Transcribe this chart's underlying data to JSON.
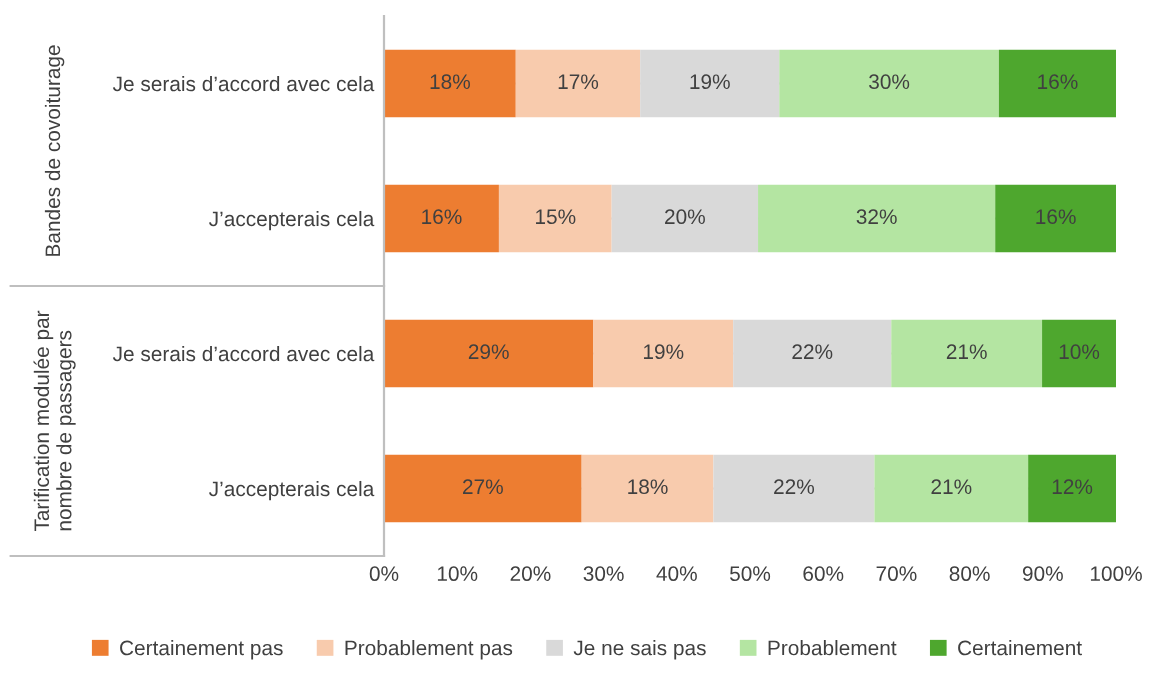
{
  "chart_data": {
    "type": "bar",
    "orientation": "horizontal",
    "stacked": true,
    "categories": [
      "Je serais d’accord avec cela",
      "J’accepterais cela",
      "Je serais d’accord avec cela",
      "J’accepterais cela"
    ],
    "series": [
      {
        "name": "Certainement pas",
        "color": "#ed7d31",
        "values": [
          18,
          15.7,
          28.6,
          27
        ],
        "value_labels": [
          "18%",
          "16%",
          "29%",
          "27%"
        ]
      },
      {
        "name": "Probablement pas",
        "color": "#f8cbad",
        "values": [
          17,
          15.4,
          19.1,
          18
        ],
        "value_labels": [
          "17%",
          "15%",
          "19%",
          "18%"
        ]
      },
      {
        "name": "Je ne sais pas",
        "color": "#d9d9d9",
        "values": [
          19,
          20.0,
          21.6,
          22
        ],
        "value_labels": [
          "19%",
          "20%",
          "22%",
          "22%"
        ]
      },
      {
        "name": "Probablement",
        "color": "#b4e5a2",
        "values": [
          30,
          32.4,
          20.6,
          21
        ],
        "value_labels": [
          "30%",
          "32%",
          "21%",
          "21%"
        ]
      },
      {
        "name": "Certainement",
        "color": "#4ea72e",
        "values": [
          16,
          16.5,
          10.1,
          12
        ],
        "value_labels": [
          "16%",
          "16%",
          "10%",
          "12%"
        ]
      }
    ],
    "xlim": [
      0,
      100
    ],
    "xticks": [
      {
        "value": 0,
        "label": "0%"
      },
      {
        "value": 10,
        "label": "10%"
      },
      {
        "value": 20,
        "label": "20%"
      },
      {
        "value": 30,
        "label": "30%"
      },
      {
        "value": 40,
        "label": "40%"
      },
      {
        "value": 50,
        "label": "50%"
      },
      {
        "value": 60,
        "label": "60%"
      },
      {
        "value": 70,
        "label": "70%"
      },
      {
        "value": 80,
        "label": "80%"
      },
      {
        "value": 90,
        "label": "90%"
      },
      {
        "value": 100,
        "label": "100%"
      }
    ],
    "annotations": [
      "Bandes de covoiturage",
      "Tarification modulée par nombre de passagers"
    ],
    "legend": "bottom",
    "grid": false
  }
}
